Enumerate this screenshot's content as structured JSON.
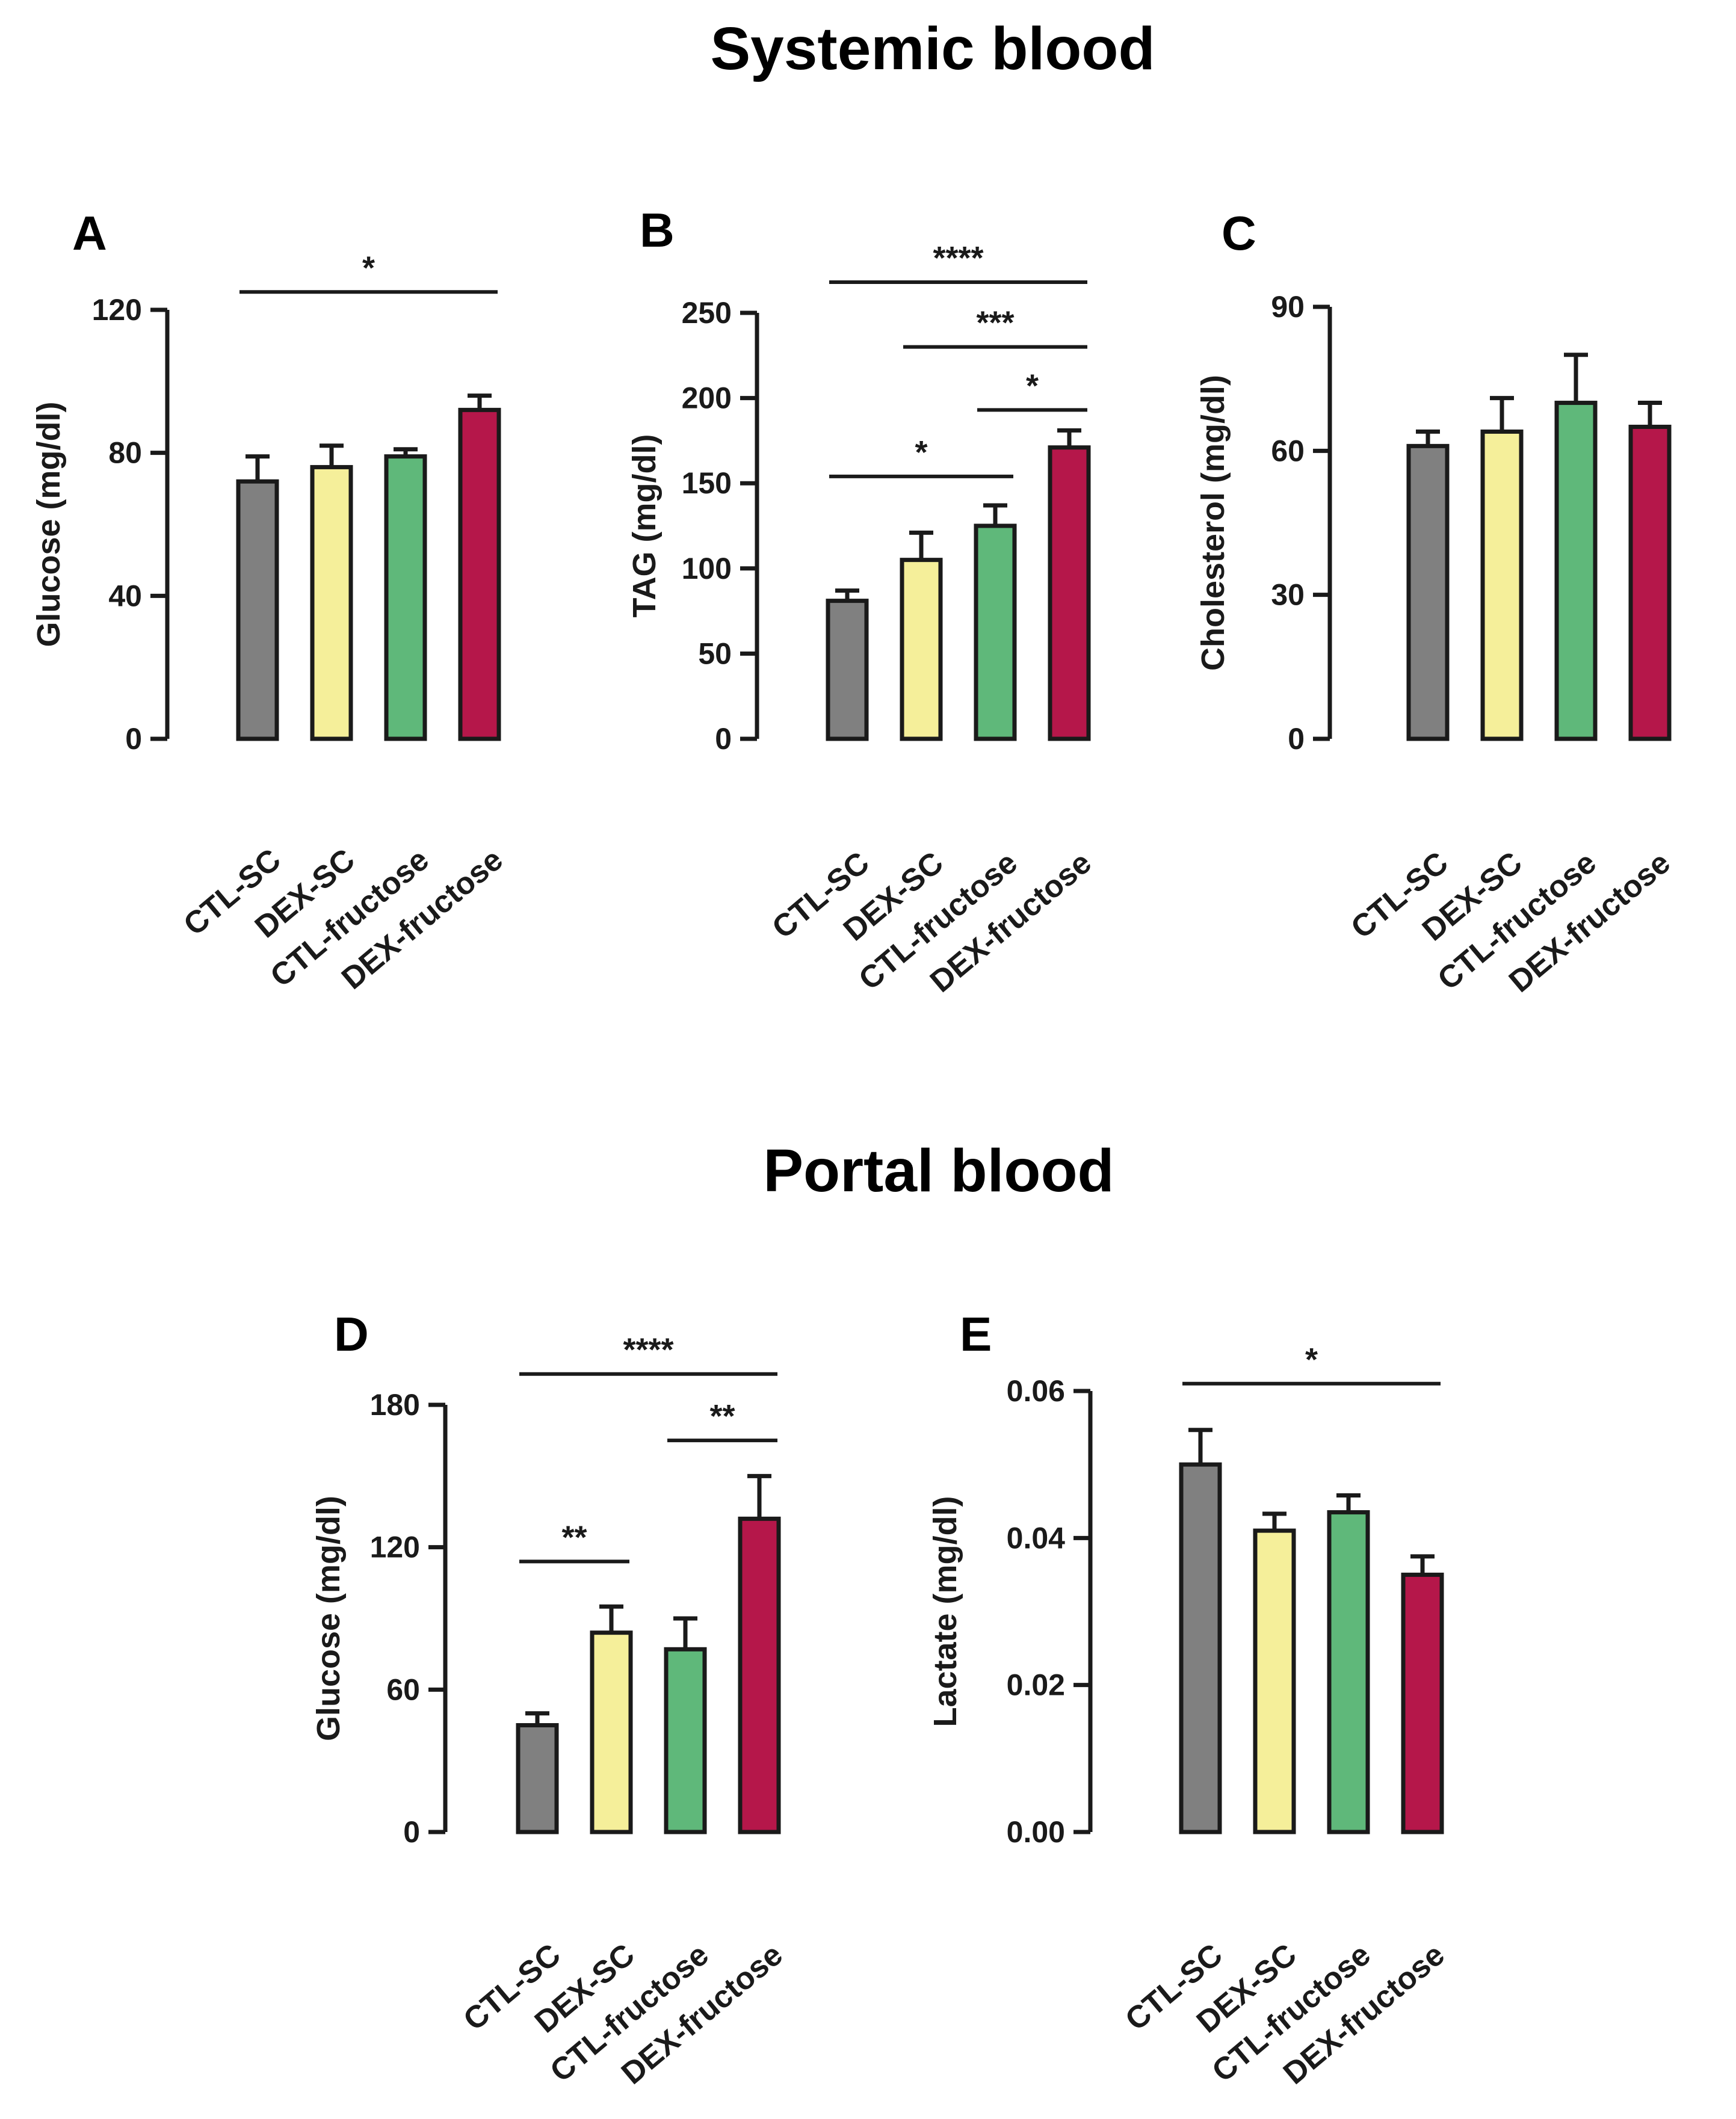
{
  "titles": {
    "systemic": "Systemic blood",
    "portal": "Portal blood"
  },
  "colors": {
    "CTL-SC": "#808080",
    "DEX-SC": "#f5ef9a",
    "CTL-fructose": "#5fb87a",
    "DEX-fructose": "#b5174a",
    "axis": "#1a1a1a"
  },
  "chart_data": [
    {
      "panel": "A",
      "type": "bar",
      "group": "Systemic blood",
      "ylabel": "Glucose (mg/dl)",
      "categories": [
        "CTL-SC",
        "DEX-SC",
        "CTL-fructose",
        "DEX-fructose"
      ],
      "values": [
        72,
        76,
        79,
        92
      ],
      "errors": [
        7,
        6,
        2,
        4
      ],
      "ylim": [
        0,
        120
      ],
      "yticks": [
        0,
        40,
        80,
        120
      ],
      "significance": [
        {
          "from": 0,
          "to": 3,
          "label": "*",
          "y": 125
        }
      ]
    },
    {
      "panel": "B",
      "type": "bar",
      "group": "Systemic blood",
      "ylabel": "TAG (mg/dl)",
      "categories": [
        "CTL-SC",
        "DEX-SC",
        "CTL-fructose",
        "DEX-fructose"
      ],
      "values": [
        81,
        105,
        125,
        171
      ],
      "errors": [
        6,
        16,
        12,
        10
      ],
      "ylim": [
        0,
        250
      ],
      "yticks": [
        0,
        50,
        100,
        150,
        200,
        250
      ],
      "significance": [
        {
          "from": 0,
          "to": 3,
          "label": "****",
          "y": 268
        },
        {
          "from": 1,
          "to": 3,
          "label": "***",
          "y": 230
        },
        {
          "from": 2,
          "to": 3,
          "label": "*",
          "y": 193
        },
        {
          "from": 0,
          "to": 2,
          "label": "*",
          "y": 154
        }
      ]
    },
    {
      "panel": "C",
      "type": "bar",
      "group": "Systemic blood",
      "ylabel": "Cholesterol (mg/dl)",
      "categories": [
        "CTL-SC",
        "DEX-SC",
        "CTL-fructose",
        "DEX-fructose"
      ],
      "values": [
        61,
        64,
        70,
        65
      ],
      "errors": [
        3,
        7,
        10,
        5
      ],
      "ylim": [
        0,
        90
      ],
      "yticks": [
        0,
        30,
        60,
        90
      ],
      "significance": []
    },
    {
      "panel": "D",
      "type": "bar",
      "group": "Portal blood",
      "ylabel": "Glucose (mg/dl)",
      "categories": [
        "CTL-SC",
        "DEX-SC",
        "CTL-fructose",
        "DEX-fructose"
      ],
      "values": [
        45,
        84,
        77,
        132
      ],
      "errors": [
        5,
        11,
        13,
        18
      ],
      "ylim": [
        0,
        180
      ],
      "yticks": [
        0,
        60,
        120,
        180
      ],
      "significance": [
        {
          "from": 0,
          "to": 3,
          "label": "****",
          "y": 193
        },
        {
          "from": 2,
          "to": 3,
          "label": "**",
          "y": 165
        },
        {
          "from": 0,
          "to": 1,
          "label": "**",
          "y": 114
        }
      ]
    },
    {
      "panel": "E",
      "type": "bar",
      "group": "Portal blood",
      "ylabel": "Lactate (mg/dl)",
      "categories": [
        "CTL-SC",
        "DEX-SC",
        "CTL-fructose",
        "DEX-fructose"
      ],
      "values": [
        0.05,
        0.041,
        0.0435,
        0.035
      ],
      "errors": [
        0.0047,
        0.0023,
        0.0023,
        0.0025
      ],
      "ylim": [
        0,
        0.06
      ],
      "yticks": [
        "0.00",
        "0.02",
        "0.04",
        "0.06"
      ],
      "significance": [
        {
          "from": 0,
          "to": 3,
          "label": "*",
          "y": 0.061
        }
      ]
    }
  ]
}
